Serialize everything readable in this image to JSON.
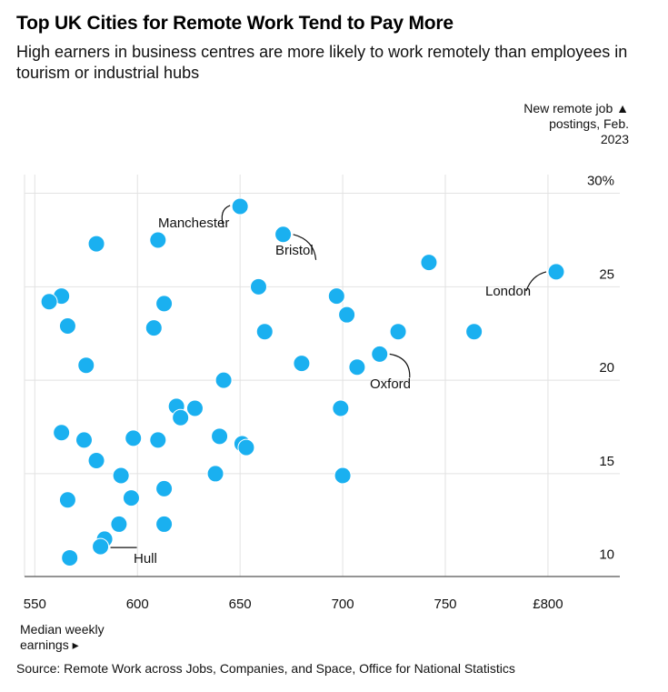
{
  "header": {
    "title": "Top UK Cities for Remote Work Tend to Pay More",
    "subtitle": "High earners in business centres are more likely to work remotely than employees in tourism or industrial hubs"
  },
  "footer": {
    "source": "Source: Remote Work across Jobs, Companies, and Space, Office for National Statistics"
  },
  "colors": {
    "point": "#1ab0f0",
    "grid": "#e2e2e2",
    "axis": "#555555",
    "text": "#000000"
  },
  "chart_data": {
    "type": "scatter",
    "title": "Top UK Cities for Remote Work Tend to Pay More",
    "subtitle": "High earners in business centres are more likely to work remotely than employees in tourism or industrial hubs",
    "xlabel_lines": [
      "Median weekly",
      "earnings ▸"
    ],
    "ylabel_lines": [
      "New remote job ▲",
      "postings, Feb.",
      "2023"
    ],
    "xlim": [
      545,
      835
    ],
    "ylim": [
      9.5,
      31
    ],
    "x_ticks": [
      {
        "value": 550,
        "label": "550"
      },
      {
        "value": 600,
        "label": "600"
      },
      {
        "value": 650,
        "label": "650"
      },
      {
        "value": 700,
        "label": "700"
      },
      {
        "value": 750,
        "label": "750"
      },
      {
        "value": 800,
        "label": "£800"
      }
    ],
    "y_ticks": [
      {
        "value": 10,
        "label": "10"
      },
      {
        "value": 15,
        "label": "15"
      },
      {
        "value": 20,
        "label": "20"
      },
      {
        "value": 25,
        "label": "25"
      },
      {
        "value": 30,
        "label": "30%"
      }
    ],
    "grid": true,
    "points": [
      {
        "x": 650,
        "y": 29.3
      },
      {
        "x": 671,
        "y": 27.8
      },
      {
        "x": 580,
        "y": 27.3
      },
      {
        "x": 610,
        "y": 27.5
      },
      {
        "x": 742,
        "y": 26.3
      },
      {
        "x": 804,
        "y": 25.8
      },
      {
        "x": 659,
        "y": 25.0
      },
      {
        "x": 563,
        "y": 24.5
      },
      {
        "x": 557,
        "y": 24.2
      },
      {
        "x": 613,
        "y": 24.1
      },
      {
        "x": 697,
        "y": 24.5
      },
      {
        "x": 702,
        "y": 23.5
      },
      {
        "x": 566,
        "y": 22.9
      },
      {
        "x": 608,
        "y": 22.8
      },
      {
        "x": 662,
        "y": 22.6
      },
      {
        "x": 727,
        "y": 22.6
      },
      {
        "x": 764,
        "y": 22.6
      },
      {
        "x": 718,
        "y": 21.4
      },
      {
        "x": 575,
        "y": 20.8
      },
      {
        "x": 680,
        "y": 20.9
      },
      {
        "x": 707,
        "y": 20.7
      },
      {
        "x": 642,
        "y": 20.0
      },
      {
        "x": 619,
        "y": 18.6
      },
      {
        "x": 628,
        "y": 18.5
      },
      {
        "x": 699,
        "y": 18.5
      },
      {
        "x": 621,
        "y": 18.0
      },
      {
        "x": 563,
        "y": 17.2
      },
      {
        "x": 574,
        "y": 16.8
      },
      {
        "x": 598,
        "y": 16.9
      },
      {
        "x": 610,
        "y": 16.8
      },
      {
        "x": 640,
        "y": 17.0
      },
      {
        "x": 651,
        "y": 16.6
      },
      {
        "x": 653,
        "y": 16.4
      },
      {
        "x": 580,
        "y": 15.7
      },
      {
        "x": 592,
        "y": 14.9
      },
      {
        "x": 638,
        "y": 15.0
      },
      {
        "x": 700,
        "y": 14.9
      },
      {
        "x": 613,
        "y": 14.2
      },
      {
        "x": 566,
        "y": 13.6
      },
      {
        "x": 597,
        "y": 13.7
      },
      {
        "x": 591,
        "y": 12.3
      },
      {
        "x": 613,
        "y": 12.3
      },
      {
        "x": 584,
        "y": 11.5
      },
      {
        "x": 582,
        "y": 11.1
      },
      {
        "x": 567,
        "y": 10.5
      }
    ],
    "annotations": [
      {
        "label": "Manchester",
        "point_index": 0
      },
      {
        "label": "Bristol",
        "point_index": 1
      },
      {
        "label": "London",
        "point_index": 5
      },
      {
        "label": "Oxford",
        "point_index": 17
      },
      {
        "label": "Hull",
        "point_index": 43
      }
    ]
  }
}
